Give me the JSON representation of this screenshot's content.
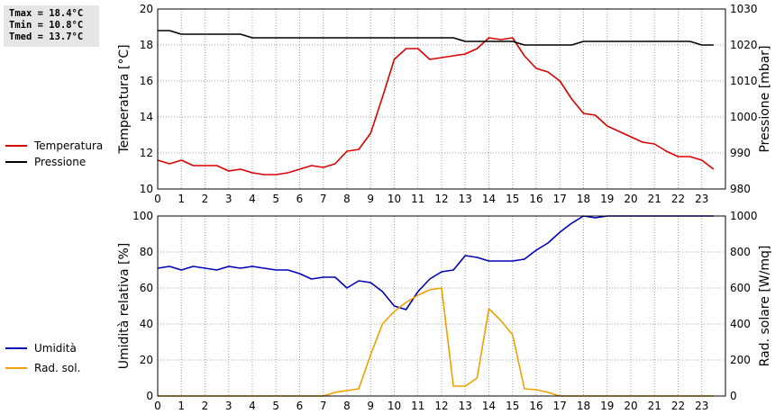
{
  "stats": {
    "tmax": "Tmax = 18.4°C",
    "tmin": "Tmin = 10.8°C",
    "tmed": "Tmed = 13.7°C"
  },
  "colors": {
    "temperature": "#dd0000",
    "pressure": "#000000",
    "humidity": "#0000bb",
    "radiation": "#f0a000",
    "grid": "#a0a0a0"
  },
  "chart_data": [
    {
      "type": "line",
      "x_ticks": [
        "0",
        "1",
        "2",
        "3",
        "4",
        "5",
        "6",
        "7",
        "8",
        "9",
        "10",
        "11",
        "12",
        "13",
        "14",
        "15",
        "16",
        "17",
        "18",
        "19",
        "20",
        "21",
        "22",
        "23"
      ],
      "xlim": [
        0,
        24
      ],
      "ylabel": "Temperatura [°C]",
      "ylim": [
        10,
        20
      ],
      "y_ticks": [
        "10",
        "12",
        "14",
        "16",
        "18",
        "20"
      ],
      "y2label": "Pressione [mbar]",
      "y2lim": [
        980,
        1030
      ],
      "y2_ticks": [
        "980",
        "990",
        "1000",
        "1010",
        "1020",
        "1030"
      ],
      "legend": [
        "Temperatura",
        "Pressione"
      ],
      "legend_position": "left",
      "grid": true,
      "series": [
        {
          "name": "Temperatura",
          "axis": "left",
          "x": [
            0,
            0.5,
            1,
            1.5,
            2,
            2.5,
            3,
            3.5,
            4,
            4.5,
            5,
            5.5,
            6,
            6.5,
            7,
            7.5,
            8,
            8.5,
            9,
            9.5,
            10,
            10.5,
            11,
            11.5,
            12,
            12.5,
            13,
            13.5,
            14,
            14.5,
            15,
            15.5,
            16,
            16.5,
            17,
            17.5,
            18,
            18.5,
            19,
            19.5,
            20,
            20.5,
            21,
            21.5,
            22,
            22.5,
            23,
            23.5
          ],
          "values": [
            11.6,
            11.4,
            11.6,
            11.3,
            11.3,
            11.3,
            11.0,
            11.1,
            10.9,
            10.8,
            10.8,
            10.9,
            11.1,
            11.3,
            11.2,
            11.4,
            12.1,
            12.2,
            13.1,
            15.1,
            17.2,
            17.8,
            17.8,
            17.2,
            17.3,
            17.4,
            17.5,
            17.8,
            18.4,
            18.3,
            18.4,
            17.4,
            16.7,
            16.5,
            16.0,
            15.0,
            14.2,
            14.1,
            13.5,
            13.2,
            12.9,
            12.6,
            12.5,
            12.1,
            11.8,
            11.8,
            11.6,
            11.1
          ]
        },
        {
          "name": "Pressione",
          "axis": "right",
          "x": [
            0,
            0.5,
            1,
            1.5,
            2,
            2.5,
            3,
            3.5,
            4,
            4.5,
            5,
            5.5,
            6,
            6.5,
            7,
            7.5,
            8,
            8.5,
            9,
            9.5,
            10,
            10.5,
            11,
            11.5,
            12,
            12.5,
            13,
            13.5,
            14,
            14.5,
            15,
            15.5,
            16,
            16.5,
            17,
            17.5,
            18,
            18.5,
            19,
            19.5,
            20,
            20.5,
            21,
            21.5,
            22,
            22.5,
            23,
            23.5
          ],
          "values": [
            1024,
            1024,
            1023,
            1023,
            1023,
            1023,
            1023,
            1023,
            1022,
            1022,
            1022,
            1022,
            1022,
            1022,
            1022,
            1022,
            1022,
            1022,
            1022,
            1022,
            1022,
            1022,
            1022,
            1022,
            1022,
            1022,
            1021,
            1021,
            1021,
            1021,
            1021,
            1020,
            1020,
            1020,
            1020,
            1020,
            1021,
            1021,
            1021,
            1021,
            1021,
            1021,
            1021,
            1021,
            1021,
            1021,
            1020,
            1020
          ]
        }
      ]
    },
    {
      "type": "line",
      "x_ticks": [
        "0",
        "1",
        "2",
        "3",
        "4",
        "5",
        "6",
        "7",
        "8",
        "9",
        "10",
        "11",
        "12",
        "13",
        "14",
        "15",
        "16",
        "17",
        "18",
        "19",
        "20",
        "21",
        "22",
        "23"
      ],
      "xlim": [
        0,
        24
      ],
      "ylabel": "Umidità relativa [%]",
      "ylim": [
        0,
        100
      ],
      "y_ticks": [
        "0",
        "20",
        "40",
        "60",
        "80",
        "100"
      ],
      "y2label": "Rad. solare [W/mq]",
      "y2lim": [
        0,
        1000
      ],
      "y2_ticks": [
        "0",
        "200",
        "400",
        "600",
        "800",
        "1000"
      ],
      "legend": [
        "Umidità",
        "Rad. sol."
      ],
      "legend_position": "left",
      "grid": true,
      "series": [
        {
          "name": "Umidità",
          "axis": "left",
          "x": [
            0,
            0.5,
            1,
            1.5,
            2,
            2.5,
            3,
            3.5,
            4,
            4.5,
            5,
            5.5,
            6,
            6.5,
            7,
            7.5,
            8,
            8.5,
            9,
            9.5,
            10,
            10.5,
            11,
            11.5,
            12,
            12.5,
            13,
            13.5,
            14,
            14.5,
            15,
            15.5,
            16,
            16.5,
            17,
            17.5,
            18,
            18.5,
            19,
            19.5,
            20,
            20.5,
            21,
            21.5,
            22,
            22.5,
            23,
            23.5
          ],
          "values": [
            71,
            72,
            70,
            72,
            71,
            70,
            72,
            71,
            72,
            71,
            70,
            70,
            68,
            65,
            66,
            66,
            60,
            64,
            63,
            58,
            50,
            48,
            58,
            65,
            69,
            70,
            78,
            77,
            75,
            75,
            75,
            76,
            81,
            85,
            91,
            96,
            100,
            99,
            100,
            100,
            100,
            100,
            100,
            100,
            100,
            100,
            100,
            100
          ]
        },
        {
          "name": "Rad. sol.",
          "axis": "right",
          "x": [
            0,
            0.5,
            1,
            1.5,
            2,
            2.5,
            3,
            3.5,
            4,
            4.5,
            5,
            5.5,
            6,
            6.5,
            7,
            7.5,
            8,
            8.5,
            9,
            9.5,
            10,
            10.5,
            11,
            11.5,
            12,
            12.5,
            13,
            13.5,
            14,
            14.5,
            15,
            15.5,
            16,
            16.5,
            17,
            17.5,
            18,
            18.5,
            19,
            19.5,
            20,
            20.5,
            21,
            21.5,
            22,
            22.5,
            23,
            23.5
          ],
          "values": [
            0,
            0,
            0,
            0,
            0,
            0,
            0,
            0,
            0,
            0,
            0,
            0,
            0,
            0,
            0,
            20,
            30,
            40,
            230,
            400,
            470,
            520,
            560,
            590,
            600,
            55,
            55,
            100,
            485,
            420,
            340,
            40,
            35,
            20,
            0,
            0,
            0,
            0,
            0,
            0,
            0,
            0,
            0,
            0,
            0,
            0,
            0,
            0
          ]
        }
      ]
    }
  ]
}
